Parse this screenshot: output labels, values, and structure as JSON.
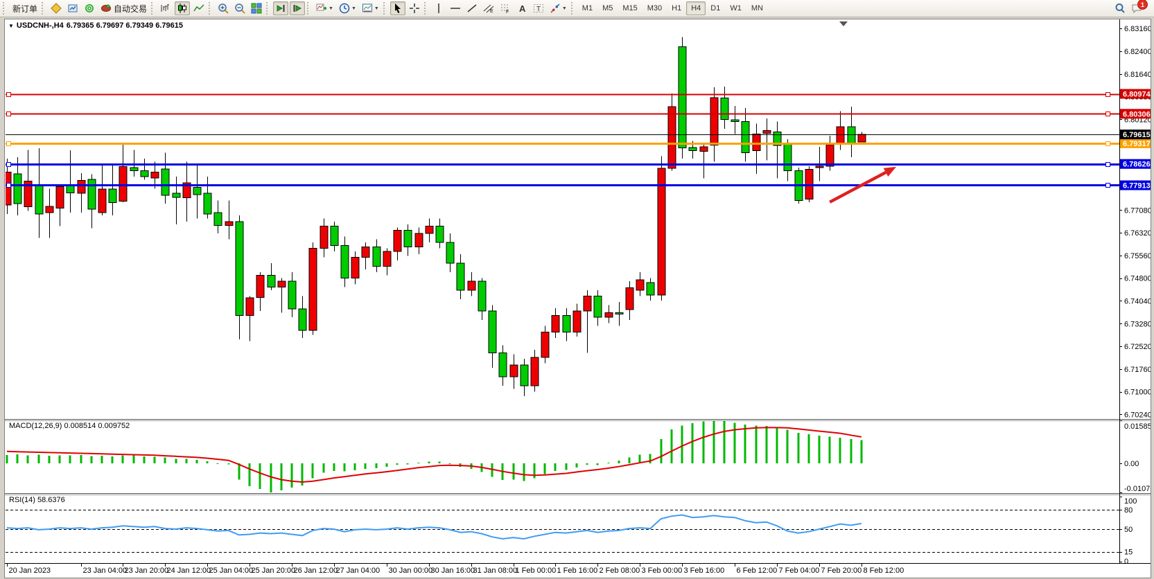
{
  "toolbar": {
    "notifications": "1",
    "groups": [
      [
        {
          "name": "new-order",
          "label": "新订单"
        }
      ],
      [
        {
          "name": "charts",
          "icon": "diamond"
        },
        {
          "name": "profiles",
          "icon": "profiles"
        },
        {
          "name": "signals",
          "icon": "signals"
        },
        {
          "name": "autotrading",
          "icon": "autotrade",
          "label": "自动交易"
        }
      ],
      [
        {
          "name": "bar-chart-mode",
          "icon": "bars"
        },
        {
          "name": "candlestick-mode",
          "icon": "candles",
          "pressed": true
        },
        {
          "name": "line-chart-mode",
          "icon": "line"
        }
      ],
      [
        {
          "name": "zoom-in",
          "icon": "zoomin"
        },
        {
          "name": "zoom-out",
          "icon": "zoomout"
        },
        {
          "name": "tile-windows",
          "icon": "tile"
        }
      ],
      [
        {
          "name": "auto-scroll",
          "icon": "autoscroll",
          "pressed": true
        },
        {
          "name": "chart-shift",
          "icon": "chartshift",
          "pressed": true
        }
      ],
      [
        {
          "name": "indicators",
          "icon": "indicators",
          "caret": true
        },
        {
          "name": "periods",
          "icon": "clock",
          "caret": true
        },
        {
          "name": "templates",
          "icon": "template",
          "caret": true
        }
      ],
      [
        {
          "name": "cursor",
          "icon": "cursor",
          "pressed": true
        },
        {
          "name": "crosshair",
          "icon": "crosshair"
        }
      ],
      [
        {
          "name": "vertical-line",
          "icon": "vline"
        },
        {
          "name": "horizontal-line",
          "icon": "hline"
        },
        {
          "name": "trendline",
          "icon": "tline"
        },
        {
          "name": "equidistant-channel",
          "icon": "channel"
        },
        {
          "name": "fibonacci",
          "icon": "fibo"
        },
        {
          "name": "text",
          "icon": "textA"
        },
        {
          "name": "text-label",
          "icon": "labelT"
        },
        {
          "name": "arrows",
          "icon": "arrows",
          "caret": true
        }
      ]
    ],
    "timeframes": [
      {
        "label": "M1"
      },
      {
        "label": "M5"
      },
      {
        "label": "M15"
      },
      {
        "label": "M30"
      },
      {
        "label": "H1"
      },
      {
        "label": "H4",
        "active": true
      },
      {
        "label": "D1"
      },
      {
        "label": "W1"
      },
      {
        "label": "MN"
      }
    ]
  },
  "chart": {
    "title_symbol": "USDCNH-,H4",
    "title_quote": "6.79365 6.79697 6.79349 6.79615"
  },
  "indicators": {
    "macd": {
      "label_text": "MACD(12,26,9) 0.008514 0.009752",
      "axis_labels": [
        "0.015856",
        "0.00",
        "-0.01076"
      ],
      "axis_values": [
        0.015856,
        0,
        -0.01076
      ]
    },
    "rsi": {
      "label_text": "RSI(14) 58.6376",
      "axis_labels": [
        "100",
        "80",
        "50",
        "15",
        "0"
      ],
      "axis_values": [
        100,
        80,
        50,
        15,
        0
      ],
      "dashed_levels": [
        80,
        50,
        15
      ]
    }
  },
  "chart_data": {
    "type": "candlestick",
    "symbol": "USDCNH",
    "timeframe": "H4",
    "colors": {
      "bull": "#EE0000",
      "bear": "#00CC00",
      "macd_hist": "#00B800",
      "macd_signal": "#E00000",
      "rsi_line": "#3E9BF5",
      "line_red": "#D40000",
      "line_blue": "#0000E0",
      "line_orange": "#FFA200",
      "current": "#000000",
      "arrow": "#E02020"
    },
    "y_ticks": [
      "6.83160",
      "6.82400",
      "6.81640",
      "6.80880",
      "6.80120",
      "6.79360",
      "6.78600",
      "6.77840",
      "6.77080",
      "6.76320",
      "6.75560",
      "6.74800",
      "6.74040",
      "6.73280",
      "6.72520",
      "6.71760",
      "6.71000",
      "6.70240"
    ],
    "y_tick_values": [
      6.8316,
      6.824,
      6.8164,
      6.8088,
      6.8012,
      6.7936,
      6.786,
      6.7784,
      6.7708,
      6.7632,
      6.7556,
      6.748,
      6.7404,
      6.7328,
      6.7252,
      6.7176,
      6.71,
      6.7024
    ],
    "price_lines": [
      {
        "price": 6.80974,
        "label": "6.80974",
        "color": "red"
      },
      {
        "price": 6.80306,
        "label": "6.80306",
        "color": "red"
      },
      {
        "price": 6.79317,
        "label": "6.79317",
        "color": "orange"
      },
      {
        "price": 6.78626,
        "label": "6.78626",
        "color": "blue"
      },
      {
        "price": 6.77913,
        "label": "6.77913",
        "color": "blue"
      }
    ],
    "current_price": {
      "price": 6.79615,
      "label": "6.79615"
    },
    "time_labels": [
      "20 Jan 2023",
      "23 Jan 04:00",
      "23 Jan 20:00",
      "24 Jan 12:00",
      "25 Jan 04:00",
      "25 Jan 20:00",
      "26 Jan 12:00",
      "27 Jan 04:00",
      "30 Jan 00:00",
      "30 Jan 16:00",
      "31 Jan 08:00",
      "1 Feb 00:00",
      "1 Feb 16:00",
      "2 Feb 08:00",
      "3 Feb 00:00",
      "3 Feb 16:00",
      "6 Feb 12:00",
      "7 Feb 04:00",
      "7 Feb 20:00",
      "8 Feb 12:00"
    ],
    "time_label_bars": [
      0,
      7,
      11,
      15,
      19,
      23,
      27,
      31,
      36,
      40,
      44,
      48,
      52,
      56,
      60,
      64,
      69,
      73,
      77,
      81
    ],
    "bars_ohlc": [
      [
        6.7725,
        6.788,
        6.7695,
        6.7835
      ],
      [
        6.783,
        6.7885,
        6.769,
        6.773
      ],
      [
        6.772,
        6.791,
        6.7705,
        6.7805
      ],
      [
        6.779,
        6.7915,
        6.7615,
        6.7695
      ],
      [
        6.77,
        6.778,
        6.7615,
        6.7721
      ],
      [
        6.7715,
        6.779,
        6.7655,
        6.7787
      ],
      [
        6.779,
        6.7908,
        6.77,
        6.7766
      ],
      [
        6.7765,
        6.7832,
        6.77,
        6.7807
      ],
      [
        6.7811,
        6.7828,
        6.7648,
        6.7711
      ],
      [
        6.77,
        6.786,
        6.769,
        6.7778
      ],
      [
        6.7778,
        6.786,
        6.769,
        6.7733
      ],
      [
        6.7738,
        6.7927,
        6.7735,
        6.7854
      ],
      [
        6.785,
        6.791,
        6.782,
        6.784
      ],
      [
        6.784,
        6.788,
        6.781,
        6.782
      ],
      [
        6.7815,
        6.787,
        6.778,
        6.7835
      ],
      [
        6.7846,
        6.79,
        6.773,
        6.7758
      ],
      [
        6.7765,
        6.782,
        6.766,
        6.7751
      ],
      [
        6.775,
        6.787,
        6.767,
        6.7799
      ],
      [
        6.7784,
        6.786,
        6.768,
        6.776
      ],
      [
        6.7765,
        6.782,
        6.768,
        6.7695
      ],
      [
        6.77,
        6.774,
        6.763,
        6.7657
      ],
      [
        6.7657,
        6.774,
        6.761,
        6.767
      ],
      [
        6.767,
        6.769,
        6.7275,
        6.7355
      ],
      [
        6.7355,
        6.742,
        6.727,
        6.7415
      ],
      [
        6.7415,
        6.75,
        6.737,
        6.749
      ],
      [
        6.749,
        6.753,
        6.744,
        6.745
      ],
      [
        6.745,
        6.748,
        6.7365,
        6.747
      ],
      [
        6.747,
        6.75,
        6.735,
        6.7377
      ],
      [
        6.7377,
        6.742,
        6.728,
        6.7305
      ],
      [
        6.7305,
        6.76,
        6.729,
        6.758
      ],
      [
        6.758,
        6.768,
        6.755,
        6.7655
      ],
      [
        6.7655,
        6.767,
        6.757,
        6.759
      ],
      [
        6.759,
        6.762,
        6.745,
        6.748
      ],
      [
        6.748,
        6.757,
        6.746,
        6.755
      ],
      [
        6.755,
        6.76,
        6.751,
        6.7585
      ],
      [
        6.7585,
        6.761,
        6.75,
        6.752
      ],
      [
        6.752,
        6.758,
        6.749,
        6.757
      ],
      [
        6.757,
        6.765,
        6.754,
        6.764
      ],
      [
        6.764,
        6.766,
        6.7555,
        6.7585
      ],
      [
        6.7585,
        6.765,
        6.756,
        6.763
      ],
      [
        6.763,
        6.768,
        6.76,
        6.7655
      ],
      [
        6.7655,
        6.768,
        6.758,
        6.76
      ],
      [
        6.76,
        6.763,
        6.75,
        6.753
      ],
      [
        6.753,
        6.756,
        6.741,
        6.744
      ],
      [
        6.744,
        6.75,
        6.742,
        6.747
      ],
      [
        6.747,
        6.748,
        6.734,
        6.737
      ],
      [
        6.737,
        6.739,
        6.718,
        6.723
      ],
      [
        6.723,
        6.7255,
        6.712,
        6.715
      ],
      [
        6.715,
        6.7225,
        6.711,
        6.719
      ],
      [
        6.719,
        6.721,
        6.7085,
        6.712
      ],
      [
        6.712,
        6.724,
        6.71,
        6.7215
      ],
      [
        6.7215,
        6.732,
        6.7195,
        6.73
      ],
      [
        6.73,
        6.738,
        6.728,
        6.7355
      ],
      [
        6.7355,
        6.738,
        6.727,
        6.73
      ],
      [
        6.73,
        6.7395,
        6.7285,
        6.737
      ],
      [
        6.737,
        6.744,
        6.723,
        6.742
      ],
      [
        6.742,
        6.744,
        6.732,
        6.735
      ],
      [
        6.735,
        6.739,
        6.733,
        6.7365
      ],
      [
        6.7365,
        6.74,
        6.732,
        6.736
      ],
      [
        6.7375,
        6.747,
        6.734,
        6.7448
      ],
      [
        6.744,
        6.75,
        6.742,
        6.7475
      ],
      [
        6.7466,
        6.748,
        6.7405,
        6.7424
      ],
      [
        6.7424,
        6.7889,
        6.7405,
        6.7848
      ],
      [
        6.7848,
        6.8098,
        6.784,
        6.8055
      ],
      [
        6.8255,
        6.8288,
        6.788,
        6.7916
      ],
      [
        6.7918,
        6.794,
        6.788,
        6.7907
      ],
      [
        6.7905,
        6.793,
        6.7815,
        6.792
      ],
      [
        6.7926,
        6.812,
        6.787,
        6.8085
      ],
      [
        6.8083,
        6.8122,
        6.798,
        6.8011
      ],
      [
        6.801,
        6.8057,
        6.7963,
        6.8005
      ],
      [
        6.8005,
        6.805,
        6.787,
        6.79
      ],
      [
        6.7907,
        6.7998,
        6.783,
        6.7963
      ],
      [
        6.7965,
        6.8015,
        6.7875,
        6.7975
      ],
      [
        6.797,
        6.8005,
        6.7815,
        6.7925
      ],
      [
        6.793,
        6.7945,
        6.7805,
        6.784
      ],
      [
        6.784,
        6.785,
        6.773,
        6.774
      ],
      [
        6.7745,
        6.7855,
        6.7735,
        6.7845
      ],
      [
        6.785,
        6.792,
        6.7805,
        6.7855
      ],
      [
        6.7855,
        6.7957,
        6.784,
        6.7927
      ],
      [
        6.793,
        6.804,
        6.791,
        6.7987
      ],
      [
        6.7987,
        6.8055,
        6.7885,
        6.7933
      ],
      [
        6.79365,
        6.79697,
        6.79349,
        6.79615
      ]
    ],
    "macd_hist": [
      0.0031,
      0.0033,
      0.003,
      0.0032,
      0.0028,
      0.003,
      0.0029,
      0.0031,
      0.0027,
      0.0028,
      0.0026,
      0.003,
      0.0029,
      0.0026,
      0.0024,
      0.0022,
      0.0016,
      0.0016,
      0.0013,
      0.0008,
      0.0,
      -0.0004,
      -0.006,
      -0.0085,
      -0.0095,
      -0.0107,
      -0.01,
      -0.009,
      -0.0082,
      -0.0055,
      -0.0035,
      -0.0028,
      -0.003,
      -0.0026,
      -0.002,
      -0.0018,
      -0.0013,
      -0.0005,
      -0.0004,
      0.0002,
      0.0007,
      0.0006,
      -0.0002,
      -0.0013,
      -0.002,
      -0.0032,
      -0.005,
      -0.0062,
      -0.006,
      -0.0065,
      -0.0055,
      -0.004,
      -0.0028,
      -0.0024,
      -0.0015,
      -0.0005,
      -0.0006,
      0.0002,
      0.001,
      0.0022,
      0.0032,
      0.0035,
      0.009,
      0.0125,
      0.014,
      0.0148,
      0.0155,
      0.0158,
      0.0156,
      0.015,
      0.0143,
      0.014,
      0.0138,
      0.0132,
      0.0124,
      0.0112,
      0.0108,
      0.0102,
      0.0098,
      0.0094,
      0.009,
      0.008514
    ],
    "macd_signal": [
      0.0044,
      0.0043,
      0.0042,
      0.0041,
      0.004,
      0.0039,
      0.0038,
      0.0037,
      0.0036,
      0.0035,
      0.0034,
      0.0033,
      0.0032,
      0.0031,
      0.003,
      0.0028,
      0.0026,
      0.0024,
      0.0022,
      0.0019,
      0.0015,
      0.0011,
      -0.0004,
      -0.0021,
      -0.0036,
      -0.005,
      -0.006,
      -0.0066,
      -0.0069,
      -0.0066,
      -0.006,
      -0.0054,
      -0.0049,
      -0.0044,
      -0.0039,
      -0.0035,
      -0.0031,
      -0.0026,
      -0.0021,
      -0.0016,
      -0.0012,
      -0.0008,
      -0.0007,
      -0.0008,
      -0.001,
      -0.0015,
      -0.0022,
      -0.003,
      -0.0036,
      -0.0042,
      -0.0044,
      -0.0043,
      -0.004,
      -0.0037,
      -0.0032,
      -0.0027,
      -0.0023,
      -0.0018,
      -0.0012,
      -0.0005,
      0.0002,
      0.0009,
      0.0025,
      0.0045,
      0.0064,
      0.0081,
      0.0096,
      0.0108,
      0.0118,
      0.0124,
      0.0128,
      0.0131,
      0.0132,
      0.0132,
      0.0131,
      0.0127,
      0.0123,
      0.0119,
      0.0115,
      0.0111,
      0.0104,
      0.009752
    ],
    "rsi_series": [
      52,
      51,
      52,
      49,
      50,
      52,
      51,
      52,
      50,
      52,
      53,
      55,
      54,
      53,
      54,
      51,
      50,
      52,
      51,
      49,
      47,
      48,
      41,
      42,
      44,
      43,
      44,
      42,
      40,
      48,
      51,
      50,
      46,
      49,
      50,
      49,
      50,
      52,
      50,
      52,
      53,
      52,
      49,
      45,
      46,
      43,
      38,
      35,
      37,
      35,
      39,
      42,
      45,
      44,
      46,
      48,
      45,
      47,
      48,
      51,
      52,
      51,
      66,
      70,
      72,
      68,
      69,
      71,
      69,
      68,
      63,
      60,
      61,
      55,
      47,
      44,
      46,
      50,
      54,
      58,
      56,
      58.6376
    ],
    "arrow": {
      "from_bar": 78.0,
      "from_price": 6.7735,
      "to_bar": 84.3,
      "to_price": 6.7853
    }
  }
}
